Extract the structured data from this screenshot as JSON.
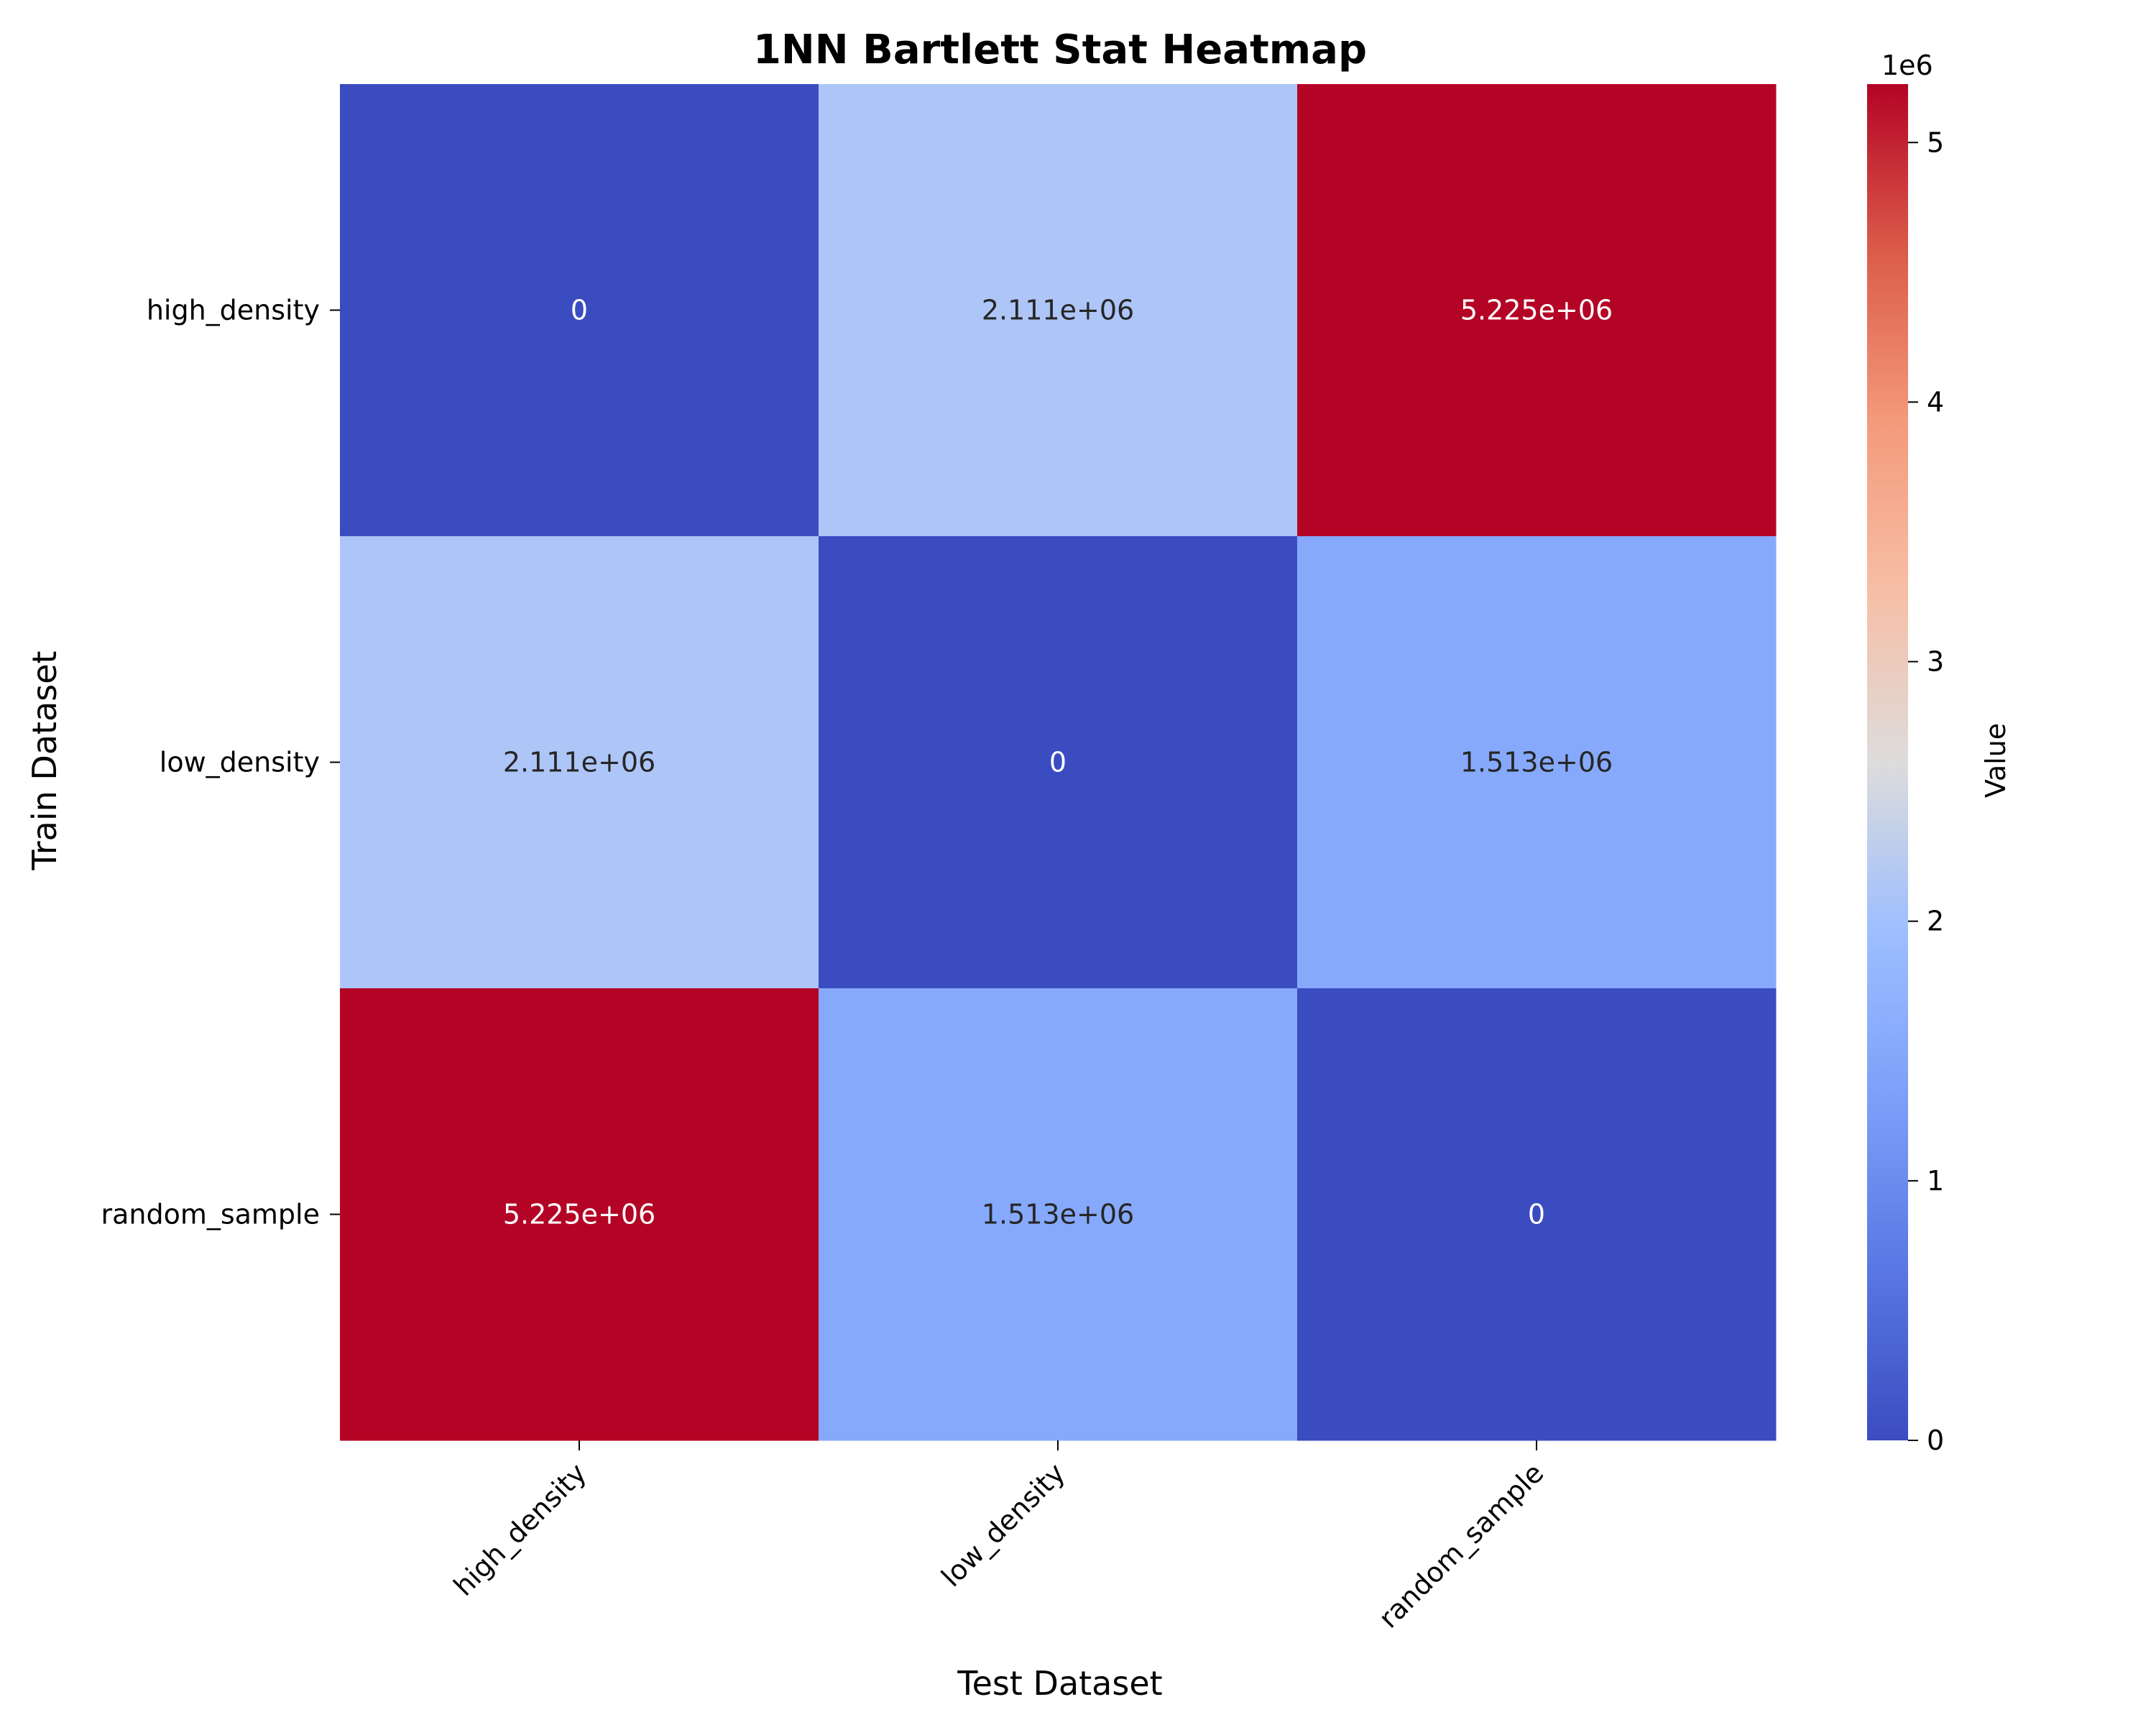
{
  "chart_data": {
    "type": "heatmap",
    "title": "1NN Bartlett Stat Heatmap",
    "xlabel": "Test Dataset",
    "ylabel": "Train Dataset",
    "x_categories": [
      "high_density",
      "low_density",
      "random_sample"
    ],
    "y_categories": [
      "high_density",
      "low_density",
      "random_sample"
    ],
    "values": [
      [
        0,
        2111000,
        5225000
      ],
      [
        2111000,
        0,
        1513000
      ],
      [
        5225000,
        1513000,
        0
      ]
    ],
    "annotations": [
      [
        "0",
        "2.111e+06",
        "5.225e+06"
      ],
      [
        "2.111e+06",
        "0",
        "1.513e+06"
      ],
      [
        "5.225e+06",
        "1.513e+06",
        "0"
      ]
    ],
    "colormap": "coolwarm",
    "vmin": 0,
    "vmax": 5225000,
    "colorbar": {
      "label": "Value",
      "offset_text": "1e6",
      "ticks": [
        0,
        1,
        2,
        3,
        4,
        5
      ],
      "tick_scale": 1000000
    },
    "x_tick_rotation_deg": 45,
    "grid": false,
    "legend": "none"
  }
}
